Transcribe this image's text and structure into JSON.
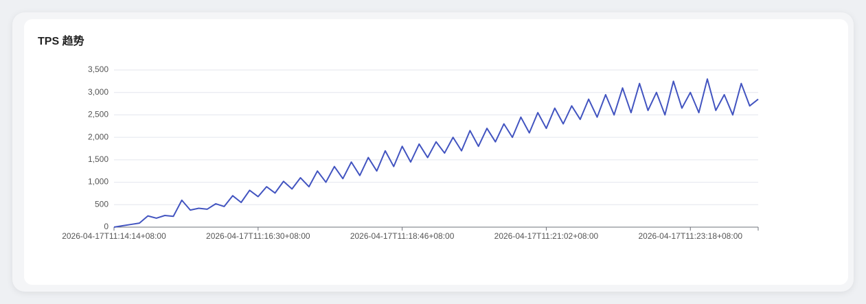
{
  "chart_data": {
    "type": "line",
    "title": "TPS 趋势",
    "categories": [
      "2026-04-17T11:14:14+08:00",
      null,
      null,
      null,
      null,
      null,
      null,
      null,
      null,
      null,
      null,
      null,
      null,
      null,
      null,
      null,
      null,
      "2026-04-17T11:16:30+08:00",
      null,
      null,
      null,
      null,
      null,
      null,
      null,
      null,
      null,
      null,
      null,
      null,
      null,
      null,
      null,
      null,
      "2026-04-17T11:18:46+08:00",
      null,
      null,
      null,
      null,
      null,
      null,
      null,
      null,
      null,
      null,
      null,
      null,
      null,
      null,
      null,
      null,
      "2026-04-17T11:21:02+08:00",
      null,
      null,
      null,
      null,
      null,
      null,
      null,
      null,
      null,
      null,
      null,
      null,
      null,
      null,
      null,
      null,
      "2026-04-17T11:23:18+08:00",
      null,
      null,
      null,
      null,
      null,
      null,
      null,
      null
    ],
    "values": [
      0,
      30,
      60,
      90,
      250,
      200,
      260,
      240,
      600,
      380,
      420,
      400,
      520,
      460,
      700,
      550,
      820,
      680,
      900,
      760,
      1020,
      850,
      1100,
      900,
      1250,
      1000,
      1350,
      1080,
      1450,
      1150,
      1550,
      1250,
      1700,
      1350,
      1800,
      1450,
      1850,
      1550,
      1900,
      1650,
      2000,
      1700,
      2150,
      1800,
      2200,
      1900,
      2300,
      2000,
      2450,
      2100,
      2550,
      2200,
      2650,
      2300,
      2700,
      2400,
      2850,
      2450,
      2950,
      2500,
      3100,
      2550,
      3200,
      2600,
      3000,
      2500,
      3250,
      2650,
      3000,
      2550,
      3300,
      2600,
      2950,
      2500,
      3200,
      2700,
      2850
    ],
    "color": "#4254c0",
    "ylim": [
      0,
      3500
    ],
    "yticks": [
      0,
      500,
      {
        "value": 1000,
        "label": "1,000"
      },
      {
        "value": 1500,
        "label": "1,500"
      },
      {
        "value": 2000,
        "label": "2,000"
      },
      {
        "value": 2500,
        "label": "2,500"
      },
      {
        "value": 3000,
        "label": "3,000"
      },
      {
        "value": 3500,
        "label": "3,500"
      }
    ],
    "grid": true
  }
}
